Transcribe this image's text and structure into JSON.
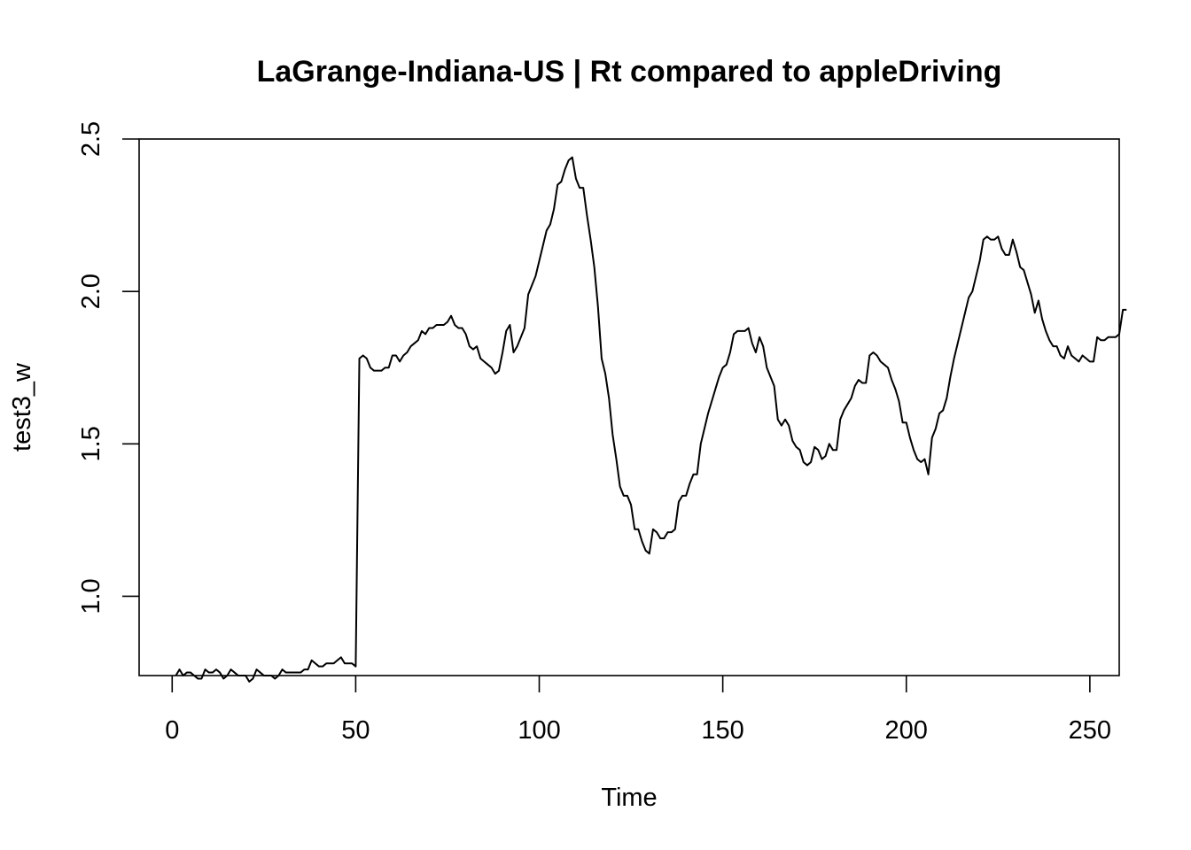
{
  "chart_data": {
    "type": "line",
    "title": "LaGrange-Indiana-US | Rt compared to appleDriving",
    "xlabel": "Time",
    "ylabel": "test3_w",
    "xlim": [
      -9,
      258
    ],
    "ylim": [
      0.74,
      2.5
    ],
    "x_ticks": [
      0,
      50,
      100,
      150,
      200,
      250
    ],
    "y_ticks": [
      1.0,
      1.5,
      2.0,
      2.5
    ],
    "x_tick_labels": [
      "0",
      "50",
      "100",
      "150",
      "200",
      "250"
    ],
    "y_tick_labels": [
      "1.0",
      "1.5",
      "2.0",
      "2.5"
    ],
    "grid": false,
    "line_color": "#000000",
    "series": [
      {
        "x_start": 1,
        "x_step": 1,
        "values": [
          0.74,
          0.76,
          0.74,
          0.75,
          0.75,
          0.74,
          0.73,
          0.73,
          0.76,
          0.75,
          0.75,
          0.76,
          0.75,
          0.73,
          0.74,
          0.76,
          0.75,
          0.74,
          0.74,
          0.74,
          0.72,
          0.73,
          0.76,
          0.75,
          0.74,
          0.74,
          0.74,
          0.73,
          0.74,
          0.76,
          0.75,
          0.75,
          0.75,
          0.75,
          0.75,
          0.76,
          0.76,
          0.79,
          0.78,
          0.77,
          0.77,
          0.78,
          0.78,
          0.78,
          0.79,
          0.8,
          0.78,
          0.78,
          0.78,
          0.77,
          1.78,
          1.79,
          1.78,
          1.75,
          1.74,
          1.74,
          1.74,
          1.75,
          1.75,
          1.79,
          1.79,
          1.77,
          1.79,
          1.8,
          1.82,
          1.83,
          1.84,
          1.87,
          1.86,
          1.88,
          1.88,
          1.89,
          1.89,
          1.89,
          1.9,
          1.92,
          1.89,
          1.88,
          1.88,
          1.86,
          1.82,
          1.81,
          1.82,
          1.78,
          1.77,
          1.76,
          1.75,
          1.73,
          1.74,
          1.8,
          1.87,
          1.89,
          1.8,
          1.82,
          1.85,
          1.88,
          1.99,
          2.02,
          2.05,
          2.1,
          2.15,
          2.2,
          2.22,
          2.27,
          2.35,
          2.36,
          2.4,
          2.43,
          2.44,
          2.37,
          2.34,
          2.34,
          2.25,
          2.17,
          2.08,
          1.95,
          1.78,
          1.73,
          1.65,
          1.53,
          1.45,
          1.36,
          1.33,
          1.33,
          1.3,
          1.22,
          1.22,
          1.18,
          1.15,
          1.14,
          1.22,
          1.21,
          1.19,
          1.19,
          1.21,
          1.21,
          1.22,
          1.31,
          1.33,
          1.33,
          1.37,
          1.4,
          1.4,
          1.5,
          1.55,
          1.6,
          1.64,
          1.68,
          1.72,
          1.75,
          1.76,
          1.8,
          1.86,
          1.87,
          1.87,
          1.87,
          1.88,
          1.83,
          1.8,
          1.85,
          1.82,
          1.75,
          1.72,
          1.69,
          1.58,
          1.56,
          1.58,
          1.56,
          1.51,
          1.49,
          1.48,
          1.44,
          1.43,
          1.44,
          1.49,
          1.48,
          1.45,
          1.46,
          1.5,
          1.48,
          1.48,
          1.58,
          1.61,
          1.63,
          1.65,
          1.69,
          1.71,
          1.7,
          1.7,
          1.79,
          1.8,
          1.79,
          1.77,
          1.76,
          1.75,
          1.71,
          1.68,
          1.64,
          1.57,
          1.57,
          1.52,
          1.48,
          1.45,
          1.44,
          1.45,
          1.4,
          1.52,
          1.55,
          1.6,
          1.61,
          1.65,
          1.72,
          1.78,
          1.83,
          1.88,
          1.93,
          1.98,
          2.0,
          2.05,
          2.1,
          2.17,
          2.18,
          2.17,
          2.17,
          2.18,
          2.14,
          2.12,
          2.12,
          2.17,
          2.13,
          2.08,
          2.07,
          2.03,
          1.99,
          1.93,
          1.97,
          1.91,
          1.87,
          1.84,
          1.82,
          1.82,
          1.79,
          1.78,
          1.82,
          1.79,
          1.78,
          1.77,
          1.79,
          1.78,
          1.77,
          1.77,
          1.85,
          1.84,
          1.84,
          1.85,
          1.85,
          1.85,
          1.86,
          1.94,
          1.94
        ]
      }
    ]
  }
}
